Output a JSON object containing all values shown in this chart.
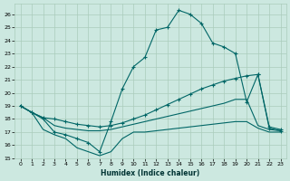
{
  "xlabel": "Humidex (Indice chaleur)",
  "bg_color": "#cce8e0",
  "grid_color": "#aaccbb",
  "line_color": "#006666",
  "xlim": [
    -0.5,
    23.5
  ],
  "ylim": [
    15,
    26.8
  ],
  "yticks": [
    15,
    16,
    17,
    18,
    19,
    20,
    21,
    22,
    23,
    24,
    25,
    26
  ],
  "xticks": [
    0,
    1,
    2,
    3,
    4,
    5,
    6,
    7,
    8,
    9,
    10,
    11,
    12,
    13,
    14,
    15,
    16,
    17,
    18,
    19,
    20,
    21,
    22,
    23
  ],
  "line1_x": [
    0,
    1,
    2,
    3,
    4,
    5,
    6,
    7,
    8,
    9,
    10,
    11,
    12,
    13,
    14,
    15,
    16,
    17,
    18,
    19,
    20,
    21,
    22,
    23
  ],
  "line1_y": [
    19.0,
    18.5,
    18.0,
    17.0,
    16.8,
    16.5,
    16.2,
    15.5,
    17.8,
    20.3,
    22.0,
    22.7,
    24.8,
    25.0,
    26.3,
    26.0,
    25.3,
    23.8,
    23.5,
    23.0,
    19.3,
    21.4,
    17.3,
    17.1
  ],
  "line2_x": [
    0,
    1,
    2,
    3,
    4,
    5,
    6,
    7,
    8,
    9,
    10,
    11,
    12,
    13,
    14,
    15,
    16,
    17,
    18,
    19,
    20,
    21,
    22,
    23
  ],
  "line2_y": [
    19.0,
    18.5,
    18.1,
    18.0,
    17.8,
    17.6,
    17.5,
    17.4,
    17.5,
    17.7,
    18.0,
    18.3,
    18.7,
    19.1,
    19.5,
    19.9,
    20.3,
    20.6,
    20.9,
    21.1,
    21.3,
    21.4,
    17.4,
    17.2
  ],
  "line3_x": [
    0,
    1,
    2,
    3,
    4,
    5,
    6,
    7,
    8,
    9,
    10,
    11,
    12,
    13,
    14,
    15,
    16,
    17,
    18,
    19,
    20,
    21,
    22,
    23
  ],
  "line3_y": [
    19.0,
    18.5,
    18.1,
    17.5,
    17.3,
    17.2,
    17.1,
    17.1,
    17.2,
    17.4,
    17.6,
    17.8,
    18.0,
    18.2,
    18.4,
    18.6,
    18.8,
    19.0,
    19.2,
    19.5,
    19.5,
    17.5,
    17.2,
    17.1
  ],
  "line4_x": [
    0,
    1,
    2,
    3,
    4,
    5,
    6,
    7,
    8,
    9,
    10,
    11,
    12,
    13,
    14,
    15,
    16,
    17,
    18,
    19,
    20,
    21,
    22,
    23
  ],
  "line4_y": [
    19.0,
    18.5,
    17.2,
    16.8,
    16.5,
    15.8,
    15.5,
    15.2,
    15.5,
    16.5,
    17.0,
    17.0,
    17.1,
    17.2,
    17.3,
    17.4,
    17.5,
    17.6,
    17.7,
    17.8,
    17.8,
    17.3,
    17.0,
    17.0
  ]
}
